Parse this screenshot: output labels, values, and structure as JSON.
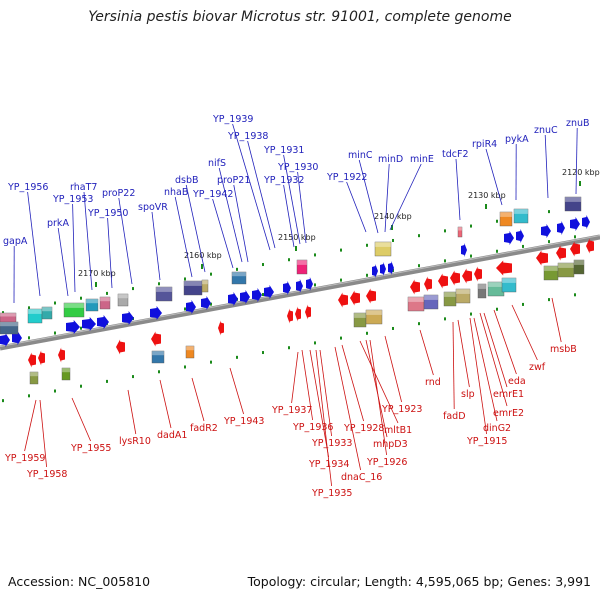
{
  "title": "Yersinia pestis biovar Microtus str. 91001, complete genome",
  "accession": "Accession: NC_005810",
  "summary": "Topology: circular; Length: 4,595,065 bp; Genes: 3,991",
  "colors": {
    "forward_strand": "#1010dd",
    "reverse_strand": "#ee1111",
    "forward_label": "#2222bb",
    "reverse_label": "#cc1111",
    "backbone": "#8a8a8a",
    "tick": "#1a8a1a"
  },
  "ticks": [
    "2170 kbp",
    "2160 kbp",
    "2150 kbp",
    "2140 kbp",
    "2130 kbp",
    "2120 kbp"
  ],
  "forward_genes": [
    "gapA",
    "YP_1956",
    "prkA",
    "YP_1953",
    "rhaT7",
    "YP_1950",
    "proP22",
    "spoVR",
    "nhaB",
    "dsbB",
    "YP_1942",
    "nifS",
    "proP21",
    "YP_1939",
    "YP_1938",
    "YP_1932",
    "YP_1931",
    "YP_1930",
    "YP_1922",
    "minC",
    "minD",
    "minE",
    "tdcF2",
    "rpiR4",
    "pykA",
    "znuC",
    "znuB"
  ],
  "reverse_genes": [
    "YP_1959",
    "YP_1958",
    "YP_1955",
    "lysR10",
    "dadA1",
    "fadR2",
    "YP_1943",
    "YP_1937",
    "YP_1936",
    "YP_1934",
    "YP_1935",
    "YP_1933",
    "dnaC_16",
    "YP_1928",
    "mltB1",
    "mhpD3",
    "YP_1926",
    "YP_1923",
    "rnd",
    "fadD",
    "slp",
    "dinG2",
    "YP_1915",
    "emrE1",
    "emrE2",
    "eda",
    "zwf",
    "msbB"
  ]
}
